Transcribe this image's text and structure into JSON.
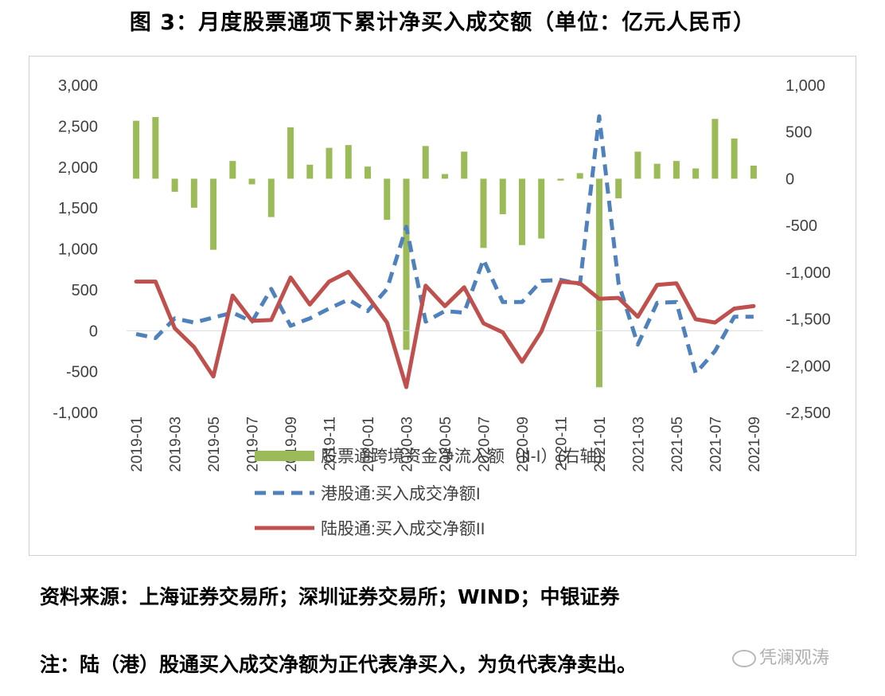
{
  "title": "图 3：月度股票通项下累计净买入成交额（单位：亿元人民币）",
  "source": "资料来源：上海证券交易所；深圳证券交易所；WIND；中银证券",
  "note": "注：陆（港）股通买入成交净额为正代表净买入，为负代表净卖出。",
  "watermark": "凭澜观涛",
  "chart_data": {
    "type": "bar",
    "x": [
      "2019-01",
      "2019-02",
      "2019-03",
      "2019-04",
      "2019-05",
      "2019-06",
      "2019-07",
      "2019-08",
      "2019-09",
      "2019-10",
      "2019-11",
      "2019-12",
      "2020-01",
      "2020-02",
      "2020-03",
      "2020-04",
      "2020-05",
      "2020-06",
      "2020-07",
      "2020-08",
      "2020-09",
      "2020-10",
      "2020-11",
      "2020-12",
      "2021-01",
      "2021-02",
      "2021-03",
      "2021-04",
      "2021-05",
      "2021-06",
      "2021-07",
      "2021-08",
      "2021-09"
    ],
    "x_tick_labels": [
      "2019-01",
      "2019-03",
      "2019-05",
      "2019-07",
      "2019-09",
      "2019-11",
      "2020-01",
      "2020-03",
      "2020-05",
      "2020-07",
      "2020-09",
      "2020-11",
      "2021-01",
      "2021-03",
      "2021-05",
      "2021-07",
      "2021-09"
    ],
    "left_axis": {
      "ylim": [
        -1000,
        3000
      ],
      "ticks": [
        "3,000",
        "2,500",
        "2,000",
        "1,500",
        "1,000",
        "500",
        "0",
        "-500",
        "-1,000"
      ]
    },
    "right_axis": {
      "ylim": [
        -2500,
        1000
      ],
      "ticks": [
        "1,000",
        "500",
        "0",
        "-500",
        "-1,000",
        "-1,500",
        "-2,000",
        "-2,500"
      ]
    },
    "series": [
      {
        "name": "股票通跨境资金净流入额（II-I）(右轴)",
        "kind": "bar",
        "axis": "right",
        "color": "#9bbb59",
        "values": [
          620,
          660,
          -140,
          -310,
          -760,
          190,
          -60,
          -410,
          550,
          150,
          330,
          360,
          130,
          -440,
          -1830,
          350,
          50,
          290,
          -740,
          -380,
          -710,
          -640,
          -20,
          60,
          -2230,
          -210,
          290,
          160,
          190,
          110,
          640,
          430,
          140
        ]
      },
      {
        "name": "港股通:买入成交净额I",
        "kind": "line",
        "axis": "left",
        "dash": true,
        "color": "#4f81bd",
        "values": [
          -40,
          -90,
          150,
          100,
          160,
          220,
          110,
          510,
          60,
          150,
          270,
          380,
          240,
          510,
          1270,
          110,
          240,
          220,
          870,
          350,
          350,
          610,
          620,
          570,
          2620,
          580,
          -170,
          340,
          350,
          -520,
          -250,
          170,
          170
        ]
      },
      {
        "name": "陆股通:买入成交净额II",
        "kind": "line",
        "axis": "left",
        "dash": false,
        "color": "#c0504d",
        "values": [
          600,
          600,
          30,
          -200,
          -560,
          430,
          120,
          130,
          650,
          320,
          600,
          720,
          420,
          100,
          -690,
          550,
          300,
          530,
          90,
          -20,
          -380,
          -10,
          600,
          580,
          390,
          400,
          170,
          560,
          580,
          140,
          100,
          270,
          300
        ]
      }
    ],
    "legend_position": "bottom",
    "grid": false
  }
}
